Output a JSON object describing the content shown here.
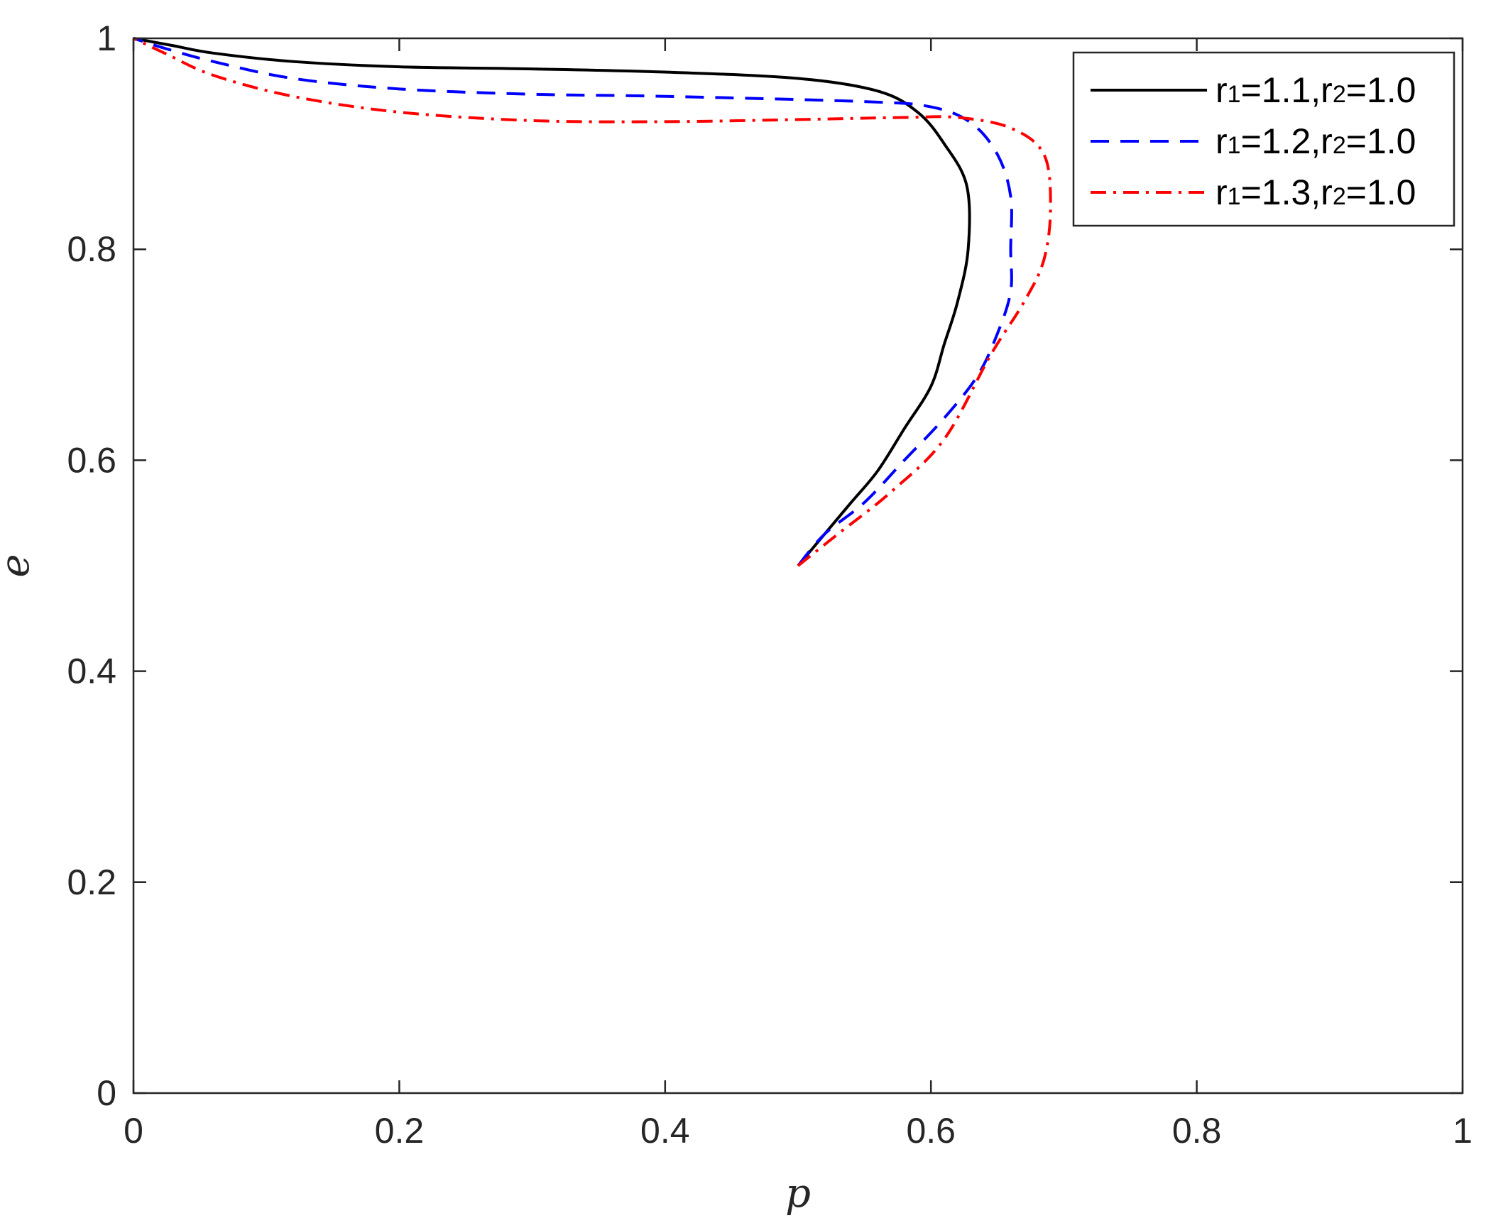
{
  "chart_data": {
    "type": "line",
    "xlabel": "p",
    "ylabel": "e",
    "xlim": [
      0,
      1
    ],
    "ylim": [
      0,
      1
    ],
    "xticks": [
      0,
      0.2,
      0.4,
      0.6,
      0.8,
      1
    ],
    "yticks": [
      0,
      0.2,
      0.4,
      0.6,
      0.8,
      1
    ],
    "xtick_labels": [
      "0",
      "0.2",
      "0.4",
      "0.6",
      "0.8",
      "1"
    ],
    "ytick_labels": [
      "0",
      "0.2",
      "0.4",
      "0.6",
      "0.8",
      "1"
    ],
    "grid": false,
    "legend_position": "top-right",
    "series": [
      {
        "name_parts": [
          "r",
          "1",
          "=1.1,r",
          "2",
          "=1.0"
        ],
        "color": "#000000",
        "line_style": "solid",
        "points": [
          [
            0.5,
            0.5
          ],
          [
            0.52,
            0.53
          ],
          [
            0.54,
            0.56
          ],
          [
            0.56,
            0.59
          ],
          [
            0.58,
            0.63
          ],
          [
            0.6,
            0.67
          ],
          [
            0.61,
            0.71
          ],
          [
            0.62,
            0.75
          ],
          [
            0.628,
            0.8
          ],
          [
            0.627,
            0.86
          ],
          [
            0.61,
            0.9
          ],
          [
            0.59,
            0.93
          ],
          [
            0.56,
            0.95
          ],
          [
            0.5,
            0.962
          ],
          [
            0.4,
            0.968
          ],
          [
            0.3,
            0.971
          ],
          [
            0.2,
            0.973
          ],
          [
            0.12,
            0.978
          ],
          [
            0.06,
            0.986
          ],
          [
            0.03,
            0.993
          ],
          [
            0.0,
            1.0
          ]
        ]
      },
      {
        "name_parts": [
          "r",
          "1",
          "=1.2,r",
          "2",
          "=1.0"
        ],
        "color": "#0000ff",
        "line_style": "dashed",
        "points": [
          [
            0.5,
            0.5
          ],
          [
            0.52,
            0.53
          ],
          [
            0.55,
            0.56
          ],
          [
            0.58,
            0.6
          ],
          [
            0.61,
            0.64
          ],
          [
            0.635,
            0.68
          ],
          [
            0.65,
            0.72
          ],
          [
            0.66,
            0.76
          ],
          [
            0.66,
            0.8
          ],
          [
            0.66,
            0.85
          ],
          [
            0.65,
            0.89
          ],
          [
            0.63,
            0.92
          ],
          [
            0.6,
            0.935
          ],
          [
            0.55,
            0.94
          ],
          [
            0.4,
            0.945
          ],
          [
            0.3,
            0.947
          ],
          [
            0.2,
            0.952
          ],
          [
            0.12,
            0.962
          ],
          [
            0.06,
            0.978
          ],
          [
            0.025,
            0.99
          ],
          [
            0.0,
            1.0
          ]
        ]
      },
      {
        "name_parts": [
          "r",
          "1",
          "=1.3,r",
          "2",
          "=1.0"
        ],
        "color": "#ff0000",
        "line_style": "dashdot",
        "points": [
          [
            0.5,
            0.5
          ],
          [
            0.53,
            0.53
          ],
          [
            0.57,
            0.57
          ],
          [
            0.61,
            0.62
          ],
          [
            0.645,
            0.7
          ],
          [
            0.67,
            0.75
          ],
          [
            0.685,
            0.79
          ],
          [
            0.69,
            0.84
          ],
          [
            0.685,
            0.89
          ],
          [
            0.66,
            0.915
          ],
          [
            0.62,
            0.925
          ],
          [
            0.58,
            0.925
          ],
          [
            0.5,
            0.923
          ],
          [
            0.4,
            0.921
          ],
          [
            0.3,
            0.922
          ],
          [
            0.2,
            0.93
          ],
          [
            0.12,
            0.945
          ],
          [
            0.06,
            0.965
          ],
          [
            0.025,
            0.985
          ],
          [
            0.0,
            1.0
          ]
        ]
      }
    ]
  }
}
